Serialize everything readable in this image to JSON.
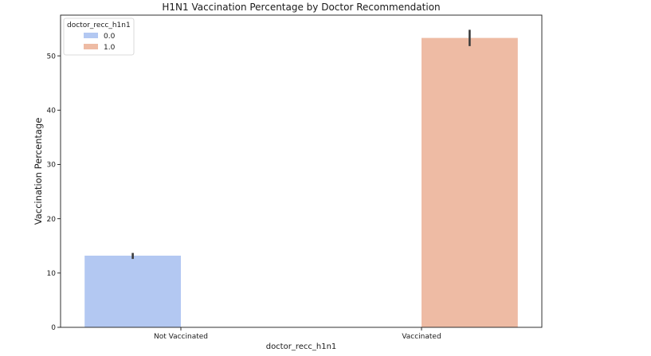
{
  "chart_data": {
    "type": "bar",
    "title": "H1N1 Vaccination Percentage by Doctor Recommendation",
    "xlabel": "doctor_recc_h1n1",
    "ylabel": "Vaccination Percentage",
    "categories": [
      "Not Vaccinated",
      "Vaccinated"
    ],
    "ylim": [
      0,
      57.5
    ],
    "yticks": [
      0,
      10,
      20,
      30,
      40,
      50
    ],
    "grid": false,
    "legend": {
      "title": "doctor_recc_h1n1",
      "placement": "top-left",
      "entries": [
        "0.0",
        "1.0"
      ]
    },
    "series": [
      {
        "name": "0.0",
        "color": "#b3c8f2",
        "values": [
          13.2,
          null
        ],
        "error": [
          [
            12.6,
            13.7
          ],
          null
        ]
      },
      {
        "name": "1.0",
        "color": "#eebba4",
        "values": [
          null,
          53.3
        ],
        "error": [
          null,
          [
            51.8,
            54.8
          ]
        ]
      }
    ],
    "errorbar_color": "#3d3d3d"
  }
}
